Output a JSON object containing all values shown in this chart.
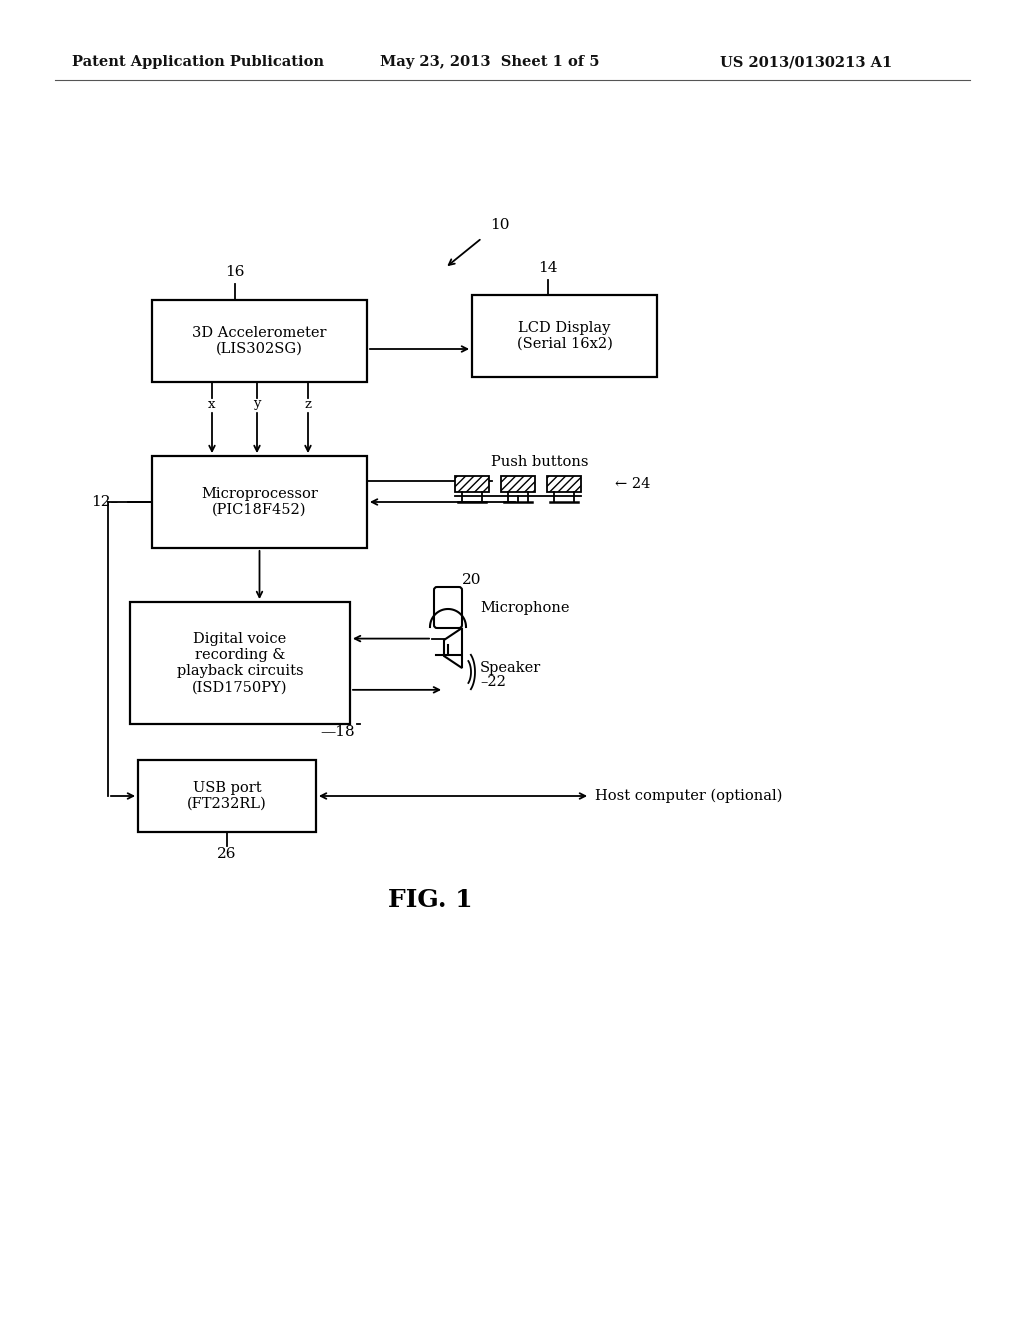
{
  "bg_color": "#ffffff",
  "header_left": "Patent Application Publication",
  "header_center": "May 23, 2013  Sheet 1 of 5",
  "header_right": "US 2013/0130213 A1",
  "fig_label": "FIG. 1",
  "ref_10": "10",
  "ref_12": "12–",
  "ref_14": "14",
  "ref_16": "16",
  "ref_18": "—18",
  "ref_20": "20",
  "ref_22": "22",
  "ref_24": "← 24",
  "ref_26": "26",
  "box_accel_text": "3D Accelerometer\n(LIS302SG)",
  "box_micro_text": "Microprocessor\n(PIC18F452)",
  "box_lcd_text": "LCD Display\n(Serial 16x2)",
  "box_digital_text": "Digital voice\nrecording &\nplayback circuits\n(ISD1750PY)",
  "box_usb_text": "USB port\n(FT232RL)",
  "label_push": "Push buttons",
  "label_micro": "Microphone",
  "label_speaker": "Speaker",
  "label_host": "Host computer (optional)",
  "xyz_x": "x",
  "xyz_y": "y",
  "xyz_z": "z"
}
